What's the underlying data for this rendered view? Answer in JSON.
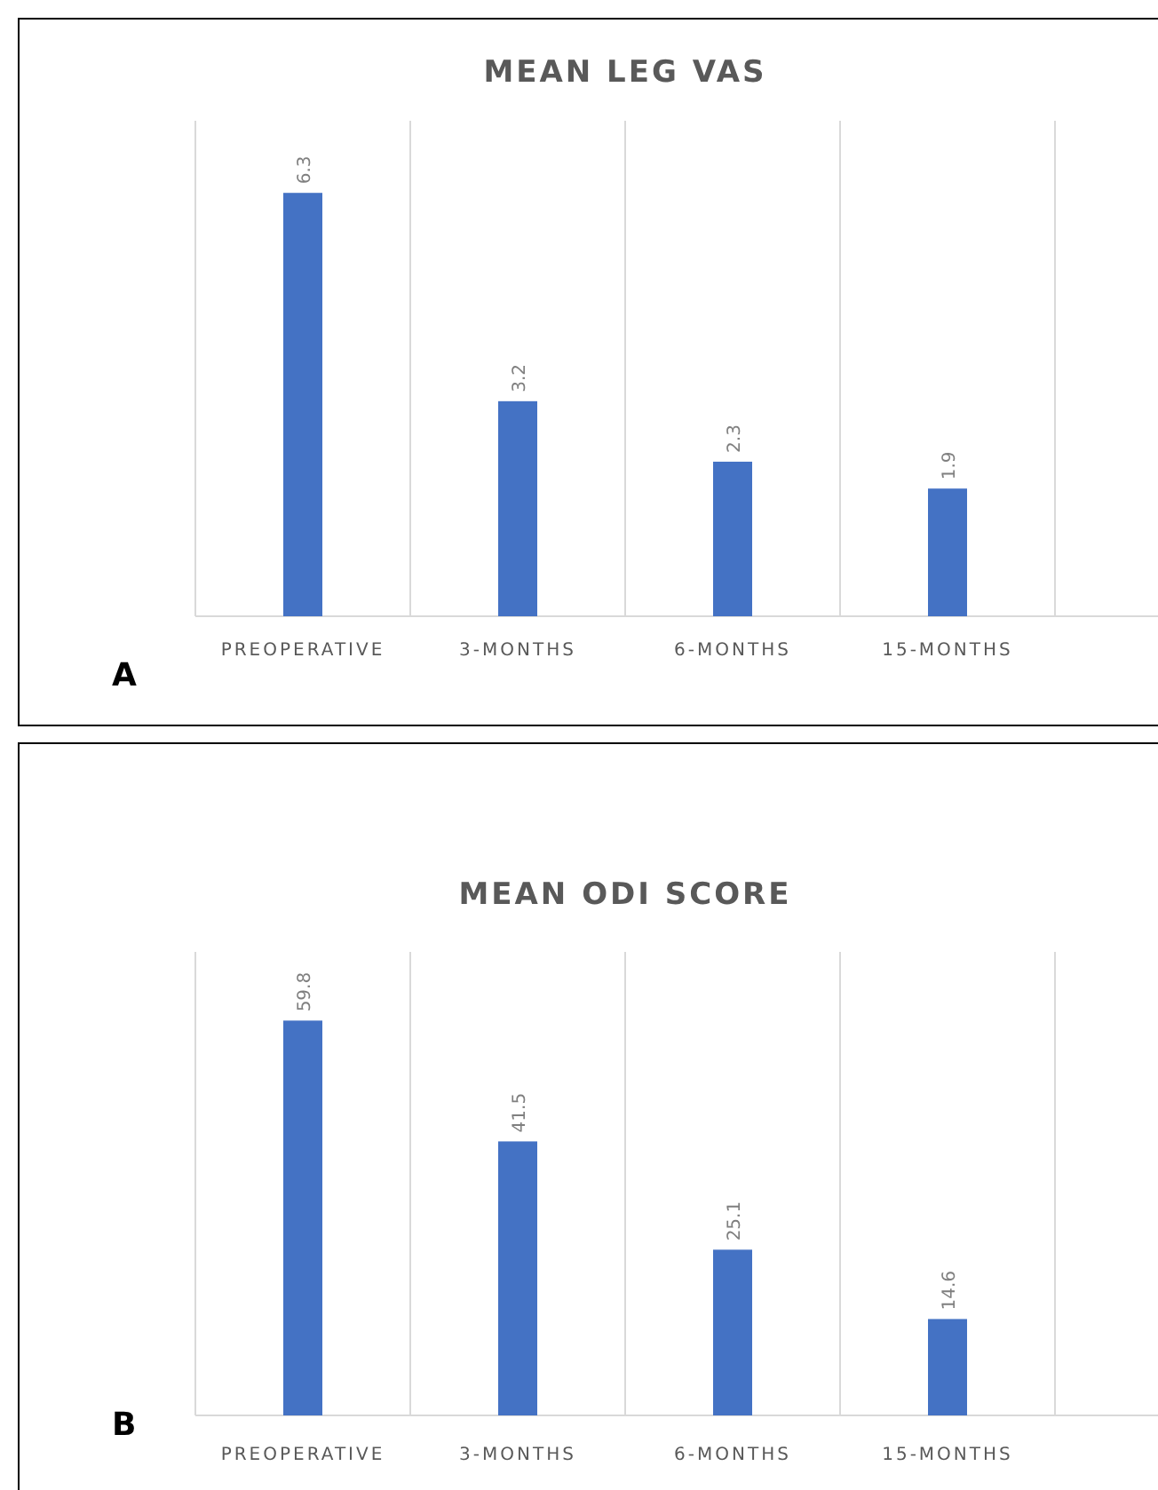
{
  "chart_data": [
    {
      "type": "bar",
      "title": "MEAN LEG VAS",
      "categories": [
        "PREOPERATIVE",
        "3-MONTHS",
        "6-MONTHS",
        "15-MONTHS"
      ],
      "values": [
        6.3,
        3.2,
        2.3,
        1.9
      ],
      "color": "#4472c4",
      "data_labels": true,
      "grid": "x",
      "annotations": [
        "A"
      ]
    },
    {
      "type": "bar",
      "title": "MEAN ODI SCORE",
      "categories": [
        "PREOPERATIVE",
        "3-MONTHS",
        "6-MONTHS",
        "15-MONTHS"
      ],
      "values": [
        59.8,
        41.5,
        25.1,
        14.6
      ],
      "color": "#4472c4",
      "data_labels": true,
      "grid": "x",
      "annotations": [
        "B"
      ]
    }
  ]
}
